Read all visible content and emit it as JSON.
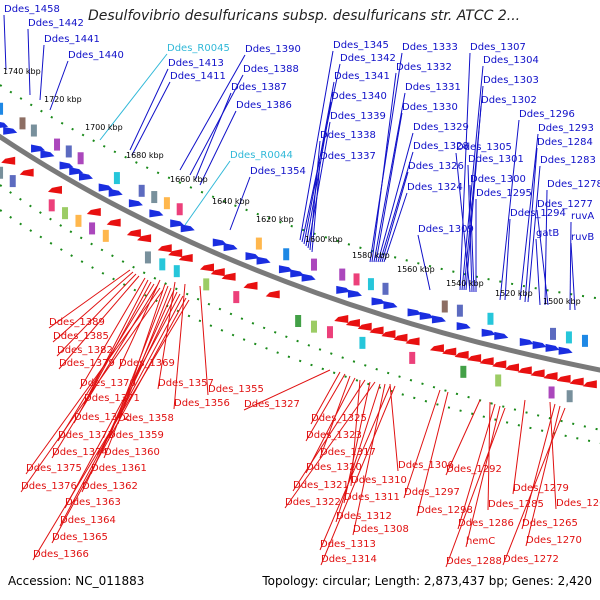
{
  "title": "Desulfovibrio desulfuricans subsp. desulfuricans str. ATCC 2...",
  "accession": "Accession: NC_011883",
  "topology": "Topology: circular; Length: 2,873,437 bp; Genes: 2,420",
  "colors": {
    "forward_label": "#1010c8",
    "reverse_label": "#e01010",
    "rna_label": "#30b8d8",
    "backbone": "#7a7a7a",
    "tick_dots": "#1a8a1a"
  },
  "kbp_ticks": [
    {
      "label": "1740 kbp"
    },
    {
      "label": "1720 kbp"
    },
    {
      "label": "1700 kbp"
    },
    {
      "label": "1680 kbp"
    },
    {
      "label": "1660 kbp"
    },
    {
      "label": "1640 kbp"
    },
    {
      "label": "1620 kbp"
    },
    {
      "label": "1600 kbp"
    },
    {
      "label": "1580 kbp"
    },
    {
      "label": "1560 kbp"
    },
    {
      "label": "1540 kbp"
    },
    {
      "label": "1520 kbp"
    },
    {
      "label": "1500 kbp"
    }
  ],
  "forward_genes": [
    "Ddes_1458",
    "Ddes_1442",
    "Ddes_1441",
    "Ddes_1440",
    "Ddes_1413",
    "Ddes_1411",
    "Ddes_1390",
    "Ddes_1388",
    "Ddes_1387",
    "Ddes_1386",
    "Ddes_1354",
    "Ddes_1345",
    "Ddes_1342",
    "Ddes_1341",
    "Ddes_1340",
    "Ddes_1339",
    "Ddes_1338",
    "Ddes_1337",
    "Ddes_1333",
    "Ddes_1332",
    "Ddes_1331",
    "Ddes_1330",
    "Ddes_1329",
    "Ddes_1328",
    "Ddes_1326",
    "Ddes_1324",
    "Ddes_1309",
    "Ddes_1307",
    "Ddes_1304",
    "Ddes_1303",
    "Ddes_1302",
    "Ddes_1296",
    "Ddes_1305",
    "Ddes_1301",
    "Ddes_1300",
    "Ddes_1295",
    "Ddes_1294",
    "Ddes_1293",
    "Ddes_1284",
    "Ddes_1283",
    "Ddes_1278",
    "Ddes_1277",
    "ruvA",
    "gatB",
    "ruvB"
  ],
  "rna_genes": [
    "Ddes_R0045",
    "Ddes_R0044"
  ],
  "reverse_genes": [
    "Ddes_1389",
    "Ddes_1385",
    "Ddes_1382",
    "Ddes_1379",
    "Ddes_1369",
    "Ddes_1370",
    "Ddes_1357",
    "Ddes_1371",
    "Ddes_1356",
    "Ddes_1355",
    "Ddes_1372",
    "Ddes_1358",
    "Ddes_1373",
    "Ddes_1359",
    "Ddes_1374",
    "Ddes_1360",
    "Ddes_1375",
    "Ddes_1361",
    "Ddes_1376",
    "Ddes_1362",
    "Ddes_1363",
    "Ddes_1364",
    "Ddes_1365",
    "Ddes_1366",
    "Ddes_1327",
    "Ddes_1325",
    "Ddes_1323",
    "Ddes_1317",
    "Ddes_1320",
    "Ddes_1310",
    "Ddes_1306",
    "Ddes_1321",
    "Ddes_1311",
    "Ddes_1322",
    "Ddes_1312",
    "Ddes_1308",
    "Ddes_1313",
    "Ddes_1314",
    "Ddes_1297",
    "Ddes_1298",
    "Ddes_1292",
    "Ddes_1279",
    "Ddes_1285",
    "Ddes_1264",
    "Ddes_1286",
    "Ddes_1265",
    "hemC",
    "Ddes_1270",
    "Ddes_1288",
    "Ddes_1272"
  ]
}
